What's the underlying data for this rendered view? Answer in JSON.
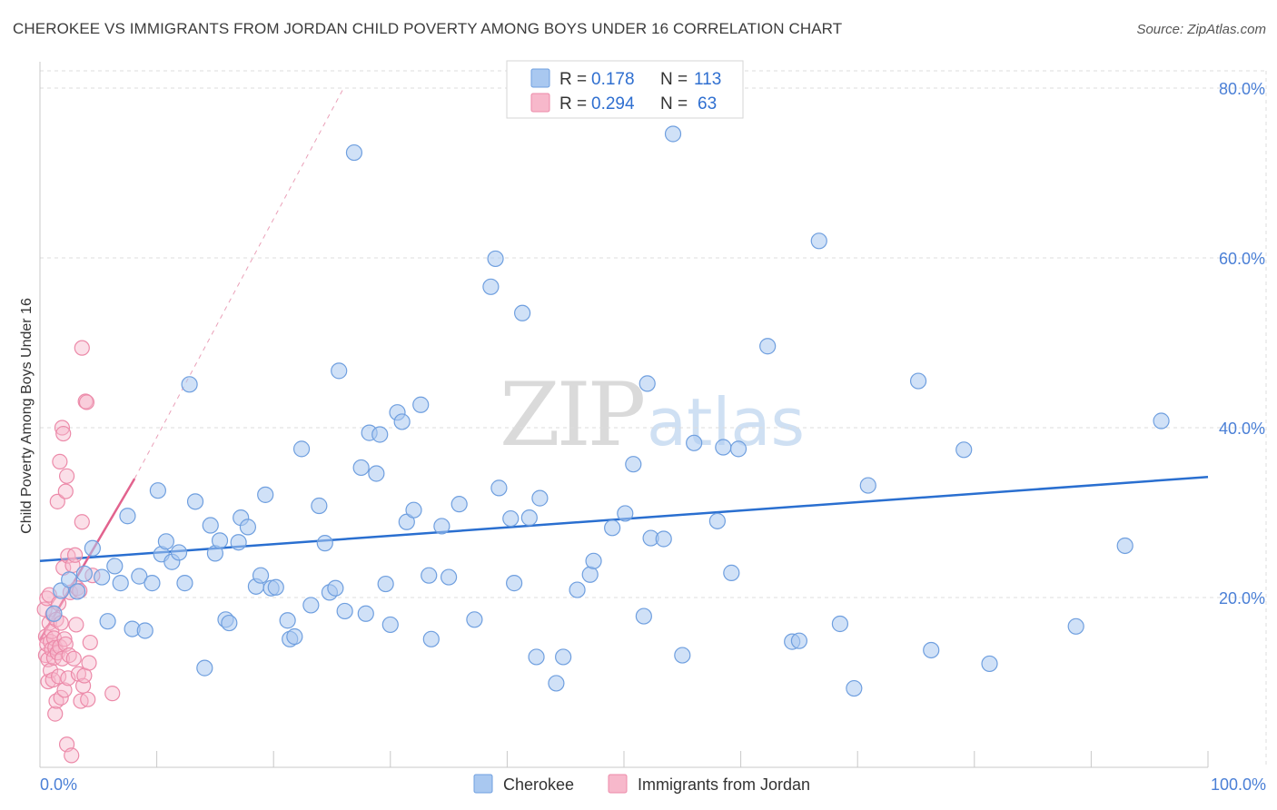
{
  "header": {
    "title": "CHEROKEE VS IMMIGRANTS FROM JORDAN CHILD POVERTY AMONG BOYS UNDER 16 CORRELATION CHART",
    "source": "Source: ZipAtlas.com"
  },
  "watermark": {
    "part1": "ZIP",
    "part2": "atlas"
  },
  "legend": {
    "rows": [
      {
        "r_label": "R =",
        "r_value": "0.178",
        "n_label": "N =",
        "n_value": "113"
      },
      {
        "r_label": "R =",
        "r_value": "0.294",
        "n_label": "N =",
        "n_value": "63"
      }
    ]
  },
  "bottom_legend": {
    "series1": "Cherokee",
    "series2": "Immigrants from Jordan"
  },
  "colors": {
    "cherokee_fill": "#a9c8f0",
    "cherokee_stroke": "#6f9fdf",
    "cherokee_line": "#2a6fd0",
    "jordan_fill": "#f7b8cb",
    "jordan_stroke": "#ec8aa9",
    "jordan_line": "#e2638e",
    "grid": "#dddddd",
    "tick_label": "#4a7fd6"
  },
  "chart_data": {
    "type": "scatter",
    "title": "CHEROKEE VS IMMIGRANTS FROM JORDAN CHILD POVERTY AMONG BOYS UNDER 16 CORRELATION CHART",
    "xlabel": "",
    "ylabel": "Child Poverty Among Boys Under 16",
    "xlim": [
      0,
      100
    ],
    "ylim": [
      0,
      80
    ],
    "x_tick_labels": [
      "0.0%",
      "100.0%"
    ],
    "y_ticks": [
      20,
      40,
      60,
      80
    ],
    "y_tick_labels": [
      "20.0%",
      "40.0%",
      "60.0%",
      "80.0%"
    ],
    "grid": true,
    "series": [
      {
        "name": "Cherokee",
        "R": 0.178,
        "N": 113,
        "trend": {
          "x": [
            0,
            100
          ],
          "y": [
            24.3,
            34.2
          ],
          "style": "solid"
        },
        "points": [
          [
            1.2,
            18.1
          ],
          [
            1.8,
            20.8
          ],
          [
            2.5,
            22.1
          ],
          [
            3.2,
            20.7
          ],
          [
            3.8,
            22.8
          ],
          [
            4.5,
            25.8
          ],
          [
            5.3,
            22.4
          ],
          [
            5.8,
            17.2
          ],
          [
            6.4,
            23.7
          ],
          [
            6.9,
            21.7
          ],
          [
            7.5,
            29.6
          ],
          [
            7.9,
            16.3
          ],
          [
            8.5,
            22.5
          ],
          [
            9.0,
            16.1
          ],
          [
            9.6,
            21.7
          ],
          [
            10.1,
            32.6
          ],
          [
            10.4,
            25.1
          ],
          [
            10.8,
            26.6
          ],
          [
            11.3,
            24.2
          ],
          [
            11.9,
            25.3
          ],
          [
            12.4,
            21.7
          ],
          [
            12.8,
            45.1
          ],
          [
            13.3,
            31.3
          ],
          [
            14.1,
            11.7
          ],
          [
            14.6,
            28.5
          ],
          [
            15.0,
            25.2
          ],
          [
            15.4,
            26.7
          ],
          [
            15.9,
            17.4
          ],
          [
            16.2,
            17.0
          ],
          [
            17.0,
            26.5
          ],
          [
            17.2,
            29.4
          ],
          [
            17.8,
            28.3
          ],
          [
            18.5,
            21.3
          ],
          [
            18.9,
            22.6
          ],
          [
            19.3,
            32.1
          ],
          [
            19.8,
            21.1
          ],
          [
            20.2,
            21.2
          ],
          [
            21.2,
            17.3
          ],
          [
            21.4,
            15.1
          ],
          [
            21.8,
            15.4
          ],
          [
            22.4,
            37.5
          ],
          [
            23.2,
            19.1
          ],
          [
            23.9,
            30.8
          ],
          [
            24.4,
            26.4
          ],
          [
            24.8,
            20.6
          ],
          [
            25.3,
            21.1
          ],
          [
            25.6,
            46.7
          ],
          [
            26.1,
            18.4
          ],
          [
            26.9,
            72.4
          ],
          [
            27.5,
            35.3
          ],
          [
            27.9,
            18.1
          ],
          [
            28.2,
            39.4
          ],
          [
            28.8,
            34.6
          ],
          [
            29.1,
            39.2
          ],
          [
            29.6,
            21.6
          ],
          [
            30.0,
            16.8
          ],
          [
            30.6,
            41.8
          ],
          [
            31.0,
            40.7
          ],
          [
            31.4,
            28.9
          ],
          [
            32.0,
            30.3
          ],
          [
            32.6,
            42.7
          ],
          [
            33.3,
            22.6
          ],
          [
            33.5,
            15.1
          ],
          [
            34.4,
            28.4
          ],
          [
            35.0,
            22.4
          ],
          [
            35.9,
            31.0
          ],
          [
            37.2,
            17.4
          ],
          [
            38.6,
            56.6
          ],
          [
            39.0,
            59.9
          ],
          [
            39.3,
            32.9
          ],
          [
            40.3,
            29.3
          ],
          [
            40.6,
            21.7
          ],
          [
            41.3,
            53.5
          ],
          [
            41.9,
            29.4
          ],
          [
            42.5,
            13.0
          ],
          [
            42.8,
            31.7
          ],
          [
            44.2,
            9.9
          ],
          [
            44.8,
            13.0
          ],
          [
            46.0,
            20.9
          ],
          [
            47.1,
            22.7
          ],
          [
            47.4,
            24.3
          ],
          [
            49.0,
            28.2
          ],
          [
            50.1,
            29.9
          ],
          [
            50.8,
            35.7
          ],
          [
            51.7,
            17.8
          ],
          [
            52.0,
            45.2
          ],
          [
            52.3,
            27.0
          ],
          [
            53.4,
            26.9
          ],
          [
            54.2,
            74.6
          ],
          [
            55.0,
            13.2
          ],
          [
            56.0,
            38.2
          ],
          [
            58.0,
            29.0
          ],
          [
            58.5,
            37.7
          ],
          [
            59.2,
            22.9
          ],
          [
            59.8,
            37.5
          ],
          [
            62.3,
            49.6
          ],
          [
            64.4,
            14.8
          ],
          [
            65.0,
            14.9
          ],
          [
            66.7,
            62.0
          ],
          [
            68.5,
            16.9
          ],
          [
            69.7,
            9.3
          ],
          [
            70.9,
            33.2
          ],
          [
            75.2,
            45.5
          ],
          [
            76.3,
            13.8
          ],
          [
            79.1,
            37.4
          ],
          [
            81.3,
            12.2
          ],
          [
            88.7,
            16.6
          ],
          [
            92.9,
            26.1
          ],
          [
            96.0,
            40.8
          ]
        ]
      },
      {
        "name": "Immigrants from Jordan",
        "R": 0.294,
        "N": 63,
        "trend": {
          "x": [
            0,
            8.1
          ],
          "y": [
            15.0,
            34.0
          ],
          "style": "solid"
        },
        "trend_extension": {
          "x": [
            8.1,
            26.0
          ],
          "y": [
            34.0,
            80.0
          ],
          "style": "dashed"
        },
        "points": [
          [
            0.4,
            18.6
          ],
          [
            0.5,
            15.4
          ],
          [
            0.5,
            13.2
          ],
          [
            0.6,
            19.9
          ],
          [
            0.6,
            14.5
          ],
          [
            0.7,
            10.1
          ],
          [
            0.7,
            12.7
          ],
          [
            0.8,
            17.0
          ],
          [
            0.8,
            20.3
          ],
          [
            0.9,
            14.8
          ],
          [
            0.9,
            11.4
          ],
          [
            1.0,
            16.0
          ],
          [
            1.0,
            13.9
          ],
          [
            1.1,
            18.0
          ],
          [
            1.1,
            10.3
          ],
          [
            1.2,
            15.2
          ],
          [
            1.2,
            12.9
          ],
          [
            1.3,
            6.3
          ],
          [
            1.3,
            14.1
          ],
          [
            1.4,
            17.4
          ],
          [
            1.4,
            7.8
          ],
          [
            1.5,
            31.3
          ],
          [
            1.5,
            13.5
          ],
          [
            1.6,
            19.3
          ],
          [
            1.6,
            10.7
          ],
          [
            1.7,
            36.0
          ],
          [
            1.7,
            14.2
          ],
          [
            1.8,
            17.0
          ],
          [
            1.8,
            8.2
          ],
          [
            1.9,
            40.0
          ],
          [
            1.9,
            12.8
          ],
          [
            2.0,
            23.5
          ],
          [
            2.0,
            39.3
          ],
          [
            2.1,
            15.1
          ],
          [
            2.1,
            9.1
          ],
          [
            2.2,
            32.5
          ],
          [
            2.2,
            14.5
          ],
          [
            2.3,
            34.3
          ],
          [
            2.3,
            2.7
          ],
          [
            2.4,
            24.9
          ],
          [
            2.4,
            10.5
          ],
          [
            2.5,
            13.2
          ],
          [
            2.6,
            20.6
          ],
          [
            2.7,
            1.4
          ],
          [
            2.8,
            23.8
          ],
          [
            2.9,
            12.8
          ],
          [
            3.0,
            25.0
          ],
          [
            3.1,
            16.8
          ],
          [
            3.2,
            21.1
          ],
          [
            3.3,
            11.0
          ],
          [
            3.4,
            20.8
          ],
          [
            3.5,
            7.8
          ],
          [
            3.6,
            28.9
          ],
          [
            3.6,
            49.4
          ],
          [
            3.7,
            9.6
          ],
          [
            3.8,
            10.8
          ],
          [
            3.9,
            43.1
          ],
          [
            4.0,
            43.0
          ],
          [
            4.1,
            8.0
          ],
          [
            4.2,
            12.3
          ],
          [
            4.3,
            14.7
          ],
          [
            4.5,
            22.6
          ],
          [
            6.2,
            8.7
          ]
        ]
      }
    ]
  },
  "y_axis_title": "Child Poverty Among Boys Under 16"
}
